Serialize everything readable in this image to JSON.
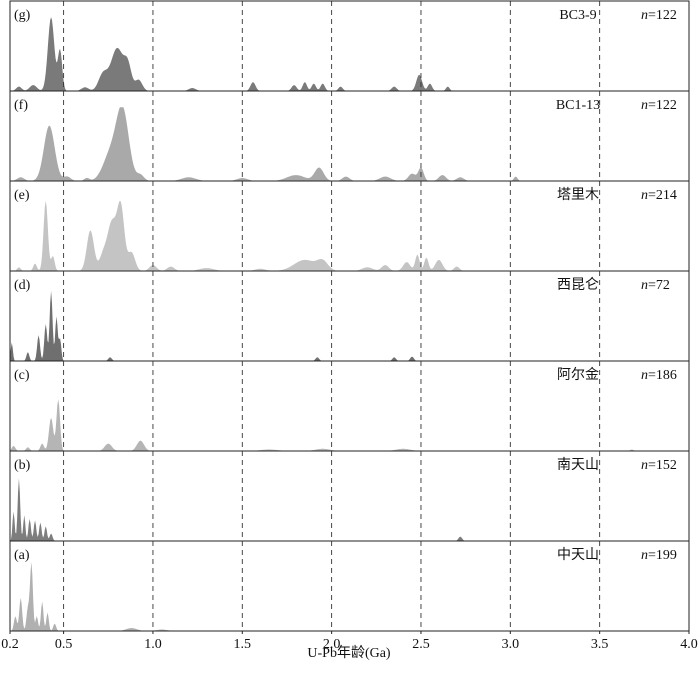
{
  "chart_data": {
    "type": "area",
    "xlabel": "U-Pb年龄(Ga)",
    "xlim": [
      0.2,
      4.0
    ],
    "x_ticks": [
      0.2,
      0.5,
      1.0,
      1.5,
      2.0,
      2.5,
      3.0,
      3.5,
      4.0
    ],
    "x_tick_labels": [
      "0.2",
      "0.5",
      "1.0",
      "1.5",
      "2.0",
      "2.5",
      "3.0",
      "3.5",
      "4.0"
    ],
    "dashed_gridlines_x": [
      0.5,
      1.0,
      1.5,
      2.0,
      2.5,
      3.0,
      3.5
    ],
    "panels": [
      {
        "letter": "(g)",
        "name": "BC3-9",
        "n_prefix": "n",
        "n_value": "=122",
        "color": "#7a7a7a",
        "peaks": [
          [
            0.43,
            1.0,
            0.018
          ],
          [
            0.48,
            0.55,
            0.012
          ],
          [
            0.25,
            0.06,
            0.015
          ],
          [
            0.33,
            0.08,
            0.02
          ],
          [
            0.62,
            0.05,
            0.02
          ],
          [
            0.72,
            0.22,
            0.025
          ],
          [
            0.8,
            0.58,
            0.035
          ],
          [
            0.86,
            0.3,
            0.02
          ],
          [
            0.92,
            0.15,
            0.02
          ],
          [
            1.22,
            0.04,
            0.02
          ],
          [
            1.56,
            0.12,
            0.014
          ],
          [
            1.79,
            0.08,
            0.014
          ],
          [
            1.85,
            0.12,
            0.012
          ],
          [
            1.9,
            0.1,
            0.012
          ],
          [
            1.95,
            0.1,
            0.012
          ],
          [
            2.05,
            0.06,
            0.012
          ],
          [
            2.35,
            0.06,
            0.014
          ],
          [
            2.49,
            0.22,
            0.016
          ],
          [
            2.55,
            0.1,
            0.012
          ],
          [
            2.65,
            0.06,
            0.01
          ]
        ]
      },
      {
        "letter": "(f)",
        "name": "BC1-13",
        "n_prefix": "n",
        "n_value": "=122",
        "color": "#a9a9a9",
        "peaks": [
          [
            0.26,
            0.05,
            0.02
          ],
          [
            0.42,
            0.75,
            0.03
          ],
          [
            0.52,
            0.06,
            0.02
          ],
          [
            0.63,
            0.04,
            0.015
          ],
          [
            0.76,
            0.35,
            0.04
          ],
          [
            0.83,
            0.95,
            0.035
          ],
          [
            0.93,
            0.08,
            0.02
          ],
          [
            1.2,
            0.05,
            0.04
          ],
          [
            1.5,
            0.04,
            0.03
          ],
          [
            1.8,
            0.08,
            0.05
          ],
          [
            1.93,
            0.18,
            0.025
          ],
          [
            2.08,
            0.06,
            0.02
          ],
          [
            2.3,
            0.06,
            0.03
          ],
          [
            2.45,
            0.1,
            0.02
          ],
          [
            2.5,
            0.18,
            0.015
          ],
          [
            2.62,
            0.08,
            0.02
          ],
          [
            2.72,
            0.05,
            0.02
          ],
          [
            3.03,
            0.06,
            0.01
          ]
        ]
      },
      {
        "letter": "(e)",
        "name": "塔里木",
        "n_prefix": "n",
        "n_value": "=214",
        "color": "#c4c4c4",
        "peaks": [
          [
            0.25,
            0.05,
            0.01
          ],
          [
            0.34,
            0.1,
            0.01
          ],
          [
            0.4,
            0.95,
            0.012
          ],
          [
            0.44,
            0.2,
            0.01
          ],
          [
            0.65,
            0.55,
            0.02
          ],
          [
            0.72,
            0.2,
            0.02
          ],
          [
            0.77,
            0.65,
            0.025
          ],
          [
            0.82,
            0.85,
            0.02
          ],
          [
            0.88,
            0.25,
            0.02
          ],
          [
            1.0,
            0.08,
            0.02
          ],
          [
            1.1,
            0.06,
            0.02
          ],
          [
            1.3,
            0.04,
            0.04
          ],
          [
            1.6,
            0.03,
            0.03
          ],
          [
            1.85,
            0.15,
            0.06
          ],
          [
            1.95,
            0.12,
            0.03
          ],
          [
            2.2,
            0.05,
            0.03
          ],
          [
            2.3,
            0.08,
            0.02
          ],
          [
            2.42,
            0.12,
            0.02
          ],
          [
            2.48,
            0.22,
            0.012
          ],
          [
            2.53,
            0.18,
            0.012
          ],
          [
            2.6,
            0.15,
            0.02
          ],
          [
            2.7,
            0.06,
            0.015
          ]
        ]
      },
      {
        "letter": "(d)",
        "name": "西昆仑",
        "n_prefix": "n",
        "n_value": "=72",
        "color": "#6f6f6f",
        "peaks": [
          [
            0.21,
            0.25,
            0.006
          ],
          [
            0.3,
            0.12,
            0.008
          ],
          [
            0.36,
            0.35,
            0.008
          ],
          [
            0.4,
            0.5,
            0.008
          ],
          [
            0.43,
            0.95,
            0.008
          ],
          [
            0.46,
            0.6,
            0.007
          ],
          [
            0.48,
            0.3,
            0.007
          ],
          [
            0.76,
            0.05,
            0.01
          ],
          [
            1.92,
            0.05,
            0.01
          ],
          [
            2.35,
            0.05,
            0.01
          ],
          [
            2.45,
            0.06,
            0.01
          ]
        ]
      },
      {
        "letter": "(c)",
        "name": "阿尔金",
        "n_prefix": "n",
        "n_value": "=186",
        "color": "#b5b5b5",
        "peaks": [
          [
            0.22,
            0.07,
            0.01
          ],
          [
            0.3,
            0.05,
            0.01
          ],
          [
            0.38,
            0.1,
            0.01
          ],
          [
            0.43,
            0.45,
            0.012
          ],
          [
            0.47,
            0.7,
            0.01
          ],
          [
            0.75,
            0.1,
            0.02
          ],
          [
            0.93,
            0.14,
            0.02
          ],
          [
            1.65,
            0.02,
            0.05
          ],
          [
            1.95,
            0.03,
            0.04
          ],
          [
            2.4,
            0.03,
            0.04
          ],
          [
            3.68,
            0.02,
            0.01
          ]
        ]
      },
      {
        "letter": "(b)",
        "name": "南天山",
        "n_prefix": "n",
        "n_value": "=152",
        "color": "#7d7d7d",
        "peaks": [
          [
            0.22,
            0.4,
            0.006
          ],
          [
            0.25,
            0.85,
            0.007
          ],
          [
            0.28,
            0.35,
            0.006
          ],
          [
            0.31,
            0.3,
            0.007
          ],
          [
            0.34,
            0.28,
            0.007
          ],
          [
            0.37,
            0.25,
            0.007
          ],
          [
            0.4,
            0.2,
            0.007
          ],
          [
            0.43,
            0.1,
            0.008
          ],
          [
            2.72,
            0.06,
            0.01
          ]
        ]
      },
      {
        "letter": "(a)",
        "name": "中天山",
        "n_prefix": "n",
        "n_value": "=199",
        "color": "#b0b0b0",
        "peaks": [
          [
            0.23,
            0.2,
            0.008
          ],
          [
            0.26,
            0.45,
            0.008
          ],
          [
            0.3,
            0.3,
            0.008
          ],
          [
            0.32,
            0.92,
            0.008
          ],
          [
            0.35,
            0.2,
            0.007
          ],
          [
            0.38,
            0.4,
            0.007
          ],
          [
            0.41,
            0.25,
            0.007
          ],
          [
            0.45,
            0.1,
            0.008
          ],
          [
            0.88,
            0.04,
            0.03
          ],
          [
            1.05,
            0.02,
            0.03
          ]
        ]
      }
    ]
  }
}
